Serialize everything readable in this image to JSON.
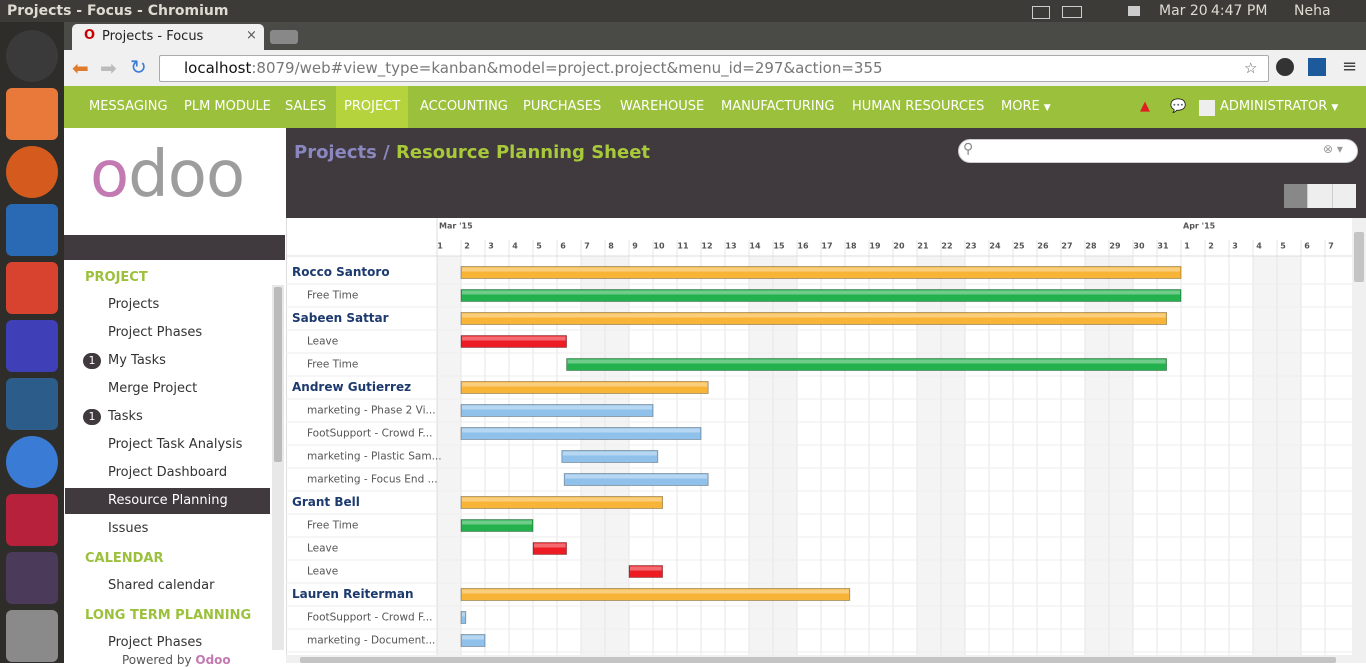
{
  "window": {
    "title": "Projects - Focus - Chromium",
    "date": "Mar 20",
    "time": "4:47 PM",
    "user": "Neha"
  },
  "browser": {
    "tab": "Projects - Focus",
    "url_host": "localhost",
    "url_path": ":8079/web#view_type=kanban&model=project.project&menu_id=297&action=355"
  },
  "nav": {
    "items": [
      "MESSAGING",
      "PLM MODULE",
      "SALES",
      "PROJECT",
      "ACCOUNTING",
      "PURCHASES",
      "WAREHOUSE",
      "MANUFACTURING",
      "HUMAN RESOURCES"
    ],
    "active": 3,
    "more": "MORE",
    "user": "ADMINISTRATOR"
  },
  "sidebar": {
    "logo": "odoo",
    "sections": [
      {
        "title": "PROJECT",
        "items": [
          {
            "label": "Projects"
          },
          {
            "label": "Project Phases"
          },
          {
            "label": "My Tasks",
            "badge": 1
          },
          {
            "label": "Merge Project"
          },
          {
            "label": "Tasks",
            "badge": 1
          },
          {
            "label": "Project Task Analysis"
          },
          {
            "label": "Project Dashboard"
          },
          {
            "label": "Resource Planning",
            "active": true
          },
          {
            "label": "Issues"
          }
        ]
      },
      {
        "title": "CALENDAR",
        "items": [
          {
            "label": "Shared calendar"
          }
        ]
      },
      {
        "title": "LONG TERM PLANNING",
        "items": [
          {
            "label": "Project Phases"
          }
        ]
      }
    ],
    "powered_by": "Powered by",
    "brand": "Odoo"
  },
  "breadcrumb": {
    "parent": "Projects",
    "separator": "/",
    "current": "Resource Planning Sheet"
  },
  "gantt": {
    "months": [
      "Mar '15",
      "Apr '15"
    ],
    "days": [
      1,
      2,
      3,
      4,
      5,
      6,
      7,
      8,
      9,
      10,
      11,
      12,
      13,
      14,
      15,
      16,
      17,
      18,
      19,
      20,
      21,
      22,
      23,
      24,
      25,
      26,
      27,
      28,
      29,
      30,
      31,
      1,
      2,
      3,
      4,
      5,
      6,
      7
    ],
    "groups": [
      {
        "name": "Rocco Santoro",
        "start": 1,
        "end": 31,
        "color": "#f7b436",
        "children": [
          {
            "label": "Free Time",
            "start": 1,
            "end": 31,
            "color": "#22b14c"
          }
        ]
      },
      {
        "name": "Sabeen Sattar",
        "start": 1,
        "end": 30.4,
        "color": "#f7b436",
        "children": [
          {
            "label": "Leave",
            "start": 1,
            "end": 5.4,
            "color": "#ed1c24"
          },
          {
            "label": "Free Time",
            "start": 5.4,
            "end": 30.4,
            "color": "#22b14c"
          }
        ]
      },
      {
        "name": "Andrew Gutierrez",
        "start": 1,
        "end": 11.3,
        "color": "#f7b436",
        "children": [
          {
            "label": "marketing - Phase 2 Vi...",
            "start": 1,
            "end": 9,
            "color": "#8fc1ea"
          },
          {
            "label": "FootSupport - Crowd F...",
            "start": 1,
            "end": 11,
            "color": "#8fc1ea"
          },
          {
            "label": "marketing - Plastic Sam...",
            "start": 5.2,
            "end": 9.2,
            "color": "#8fc1ea"
          },
          {
            "label": "marketing - Focus End ...",
            "start": 5.3,
            "end": 11.3,
            "color": "#8fc1ea"
          }
        ]
      },
      {
        "name": "Grant Bell",
        "start": 1,
        "end": 9.4,
        "color": "#f7b436",
        "children": [
          {
            "label": "Free Time",
            "start": 1,
            "end": 4,
            "color": "#22b14c"
          },
          {
            "label": "Leave",
            "start": 4,
            "end": 5.4,
            "color": "#ed1c24"
          },
          {
            "label": "Leave",
            "start": 8,
            "end": 9.4,
            "color": "#ed1c24"
          }
        ]
      },
      {
        "name": "Lauren Reiterman",
        "start": 1,
        "end": 17.2,
        "color": "#f7b436",
        "children": [
          {
            "label": "FootSupport - Crowd F...",
            "start": 1,
            "end": 1.2,
            "color": "#8fc1ea"
          },
          {
            "label": "marketing - Document...",
            "start": 1,
            "end": 2,
            "color": "#8fc1ea"
          }
        ]
      }
    ]
  }
}
